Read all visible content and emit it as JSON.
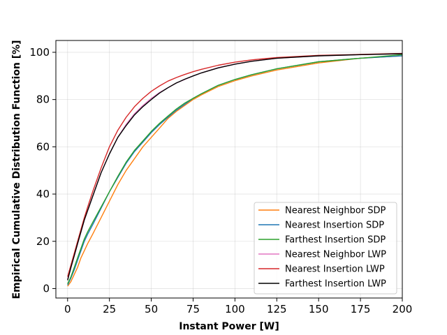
{
  "chart_data": {
    "type": "line",
    "xlabel": "Instant Power [W]",
    "ylabel": "Empirical Cumulative Distribution Function [%]",
    "xlim": [
      -7,
      200
    ],
    "ylim": [
      -4,
      105
    ],
    "xticks": [
      0,
      25,
      50,
      75,
      100,
      125,
      150,
      175,
      200
    ],
    "yticks": [
      0,
      20,
      40,
      60,
      80,
      100
    ],
    "grid": true,
    "legend_position": "lower-right",
    "series": [
      {
        "name": "Nearest Neighbor SDP",
        "color": "#ff7f0e",
        "x": [
          0,
          2,
          4,
          6,
          8,
          10,
          12,
          15,
          20,
          25,
          30,
          35,
          40,
          45,
          50,
          55,
          60,
          65,
          70,
          75,
          80,
          90,
          100,
          110,
          125,
          150,
          175,
          200
        ],
        "y": [
          1,
          3,
          6,
          9,
          13,
          16,
          19,
          23,
          30,
          37,
          44,
          50,
          55,
          60,
          64,
          68,
          72,
          75,
          77.5,
          80,
          82,
          85.5,
          88,
          90,
          92.5,
          95.5,
          97.5,
          98.5
        ]
      },
      {
        "name": "Nearest Insertion SDP",
        "color": "#1f77b4",
        "x": [
          0,
          2,
          4,
          6,
          8,
          10,
          12,
          15,
          20,
          25,
          30,
          35,
          40,
          45,
          50,
          55,
          60,
          65,
          70,
          75,
          80,
          90,
          100,
          110,
          125,
          150,
          175,
          200
        ],
        "y": [
          1.5,
          4.5,
          8,
          12,
          16,
          20,
          23,
          27,
          34,
          41,
          47,
          53,
          58,
          62,
          66,
          69.5,
          72.5,
          75.5,
          78,
          80.5,
          82.5,
          86,
          88.5,
          90.5,
          93,
          96,
          97.5,
          98.5
        ]
      },
      {
        "name": "Farthest Insertion SDP",
        "color": "#2ca02c",
        "x": [
          0,
          2,
          4,
          6,
          8,
          10,
          12,
          15,
          20,
          25,
          30,
          35,
          40,
          45,
          50,
          55,
          60,
          65,
          70,
          75,
          80,
          90,
          100,
          110,
          125,
          150,
          175,
          200
        ],
        "y": [
          2,
          5,
          9,
          13,
          17,
          21,
          24,
          28,
          34.5,
          41,
          47.5,
          53.5,
          58.5,
          62.5,
          66.5,
          70,
          73,
          76,
          78.5,
          80.5,
          82.5,
          86,
          88.5,
          90.5,
          93,
          96,
          97.5,
          99
        ]
      },
      {
        "name": "Nearest Neighbor LWP",
        "color": "#e377c2",
        "x": [
          0,
          2,
          4,
          6,
          8,
          10,
          12,
          15,
          20,
          25,
          30,
          35,
          40,
          45,
          50,
          55,
          60,
          65,
          70,
          75,
          80,
          90,
          100,
          110,
          125,
          150,
          175,
          200
        ],
        "y": [
          4,
          9,
          14,
          19,
          24,
          29,
          33,
          39,
          49,
          57,
          64,
          69.5,
          74,
          77.5,
          80.5,
          83,
          85,
          87,
          88.5,
          90,
          91.3,
          93.5,
          95,
          96.2,
          97.5,
          98.5,
          99,
          99.4
        ]
      },
      {
        "name": "Nearest Insertion LWP",
        "color": "#d62728",
        "x": [
          0,
          2,
          4,
          6,
          8,
          10,
          12,
          15,
          20,
          25,
          30,
          35,
          40,
          45,
          50,
          55,
          60,
          65,
          70,
          75,
          80,
          90,
          100,
          110,
          125,
          150,
          175,
          200
        ],
        "y": [
          5,
          10,
          15,
          20,
          25,
          30,
          34.5,
          41,
          51,
          60,
          67,
          72.5,
          77,
          80.5,
          83.5,
          85.8,
          87.8,
          89.3,
          90.6,
          91.8,
          92.8,
          94.5,
          95.8,
          96.8,
          97.8,
          98.7,
          99.1,
          99.5
        ]
      },
      {
        "name": "Farthest Insertion LWP",
        "color": "#000000",
        "x": [
          0,
          2,
          4,
          6,
          8,
          10,
          12,
          15,
          20,
          25,
          30,
          35,
          40,
          45,
          50,
          55,
          60,
          65,
          70,
          75,
          80,
          90,
          100,
          110,
          125,
          150,
          175,
          200
        ],
        "y": [
          3.5,
          9,
          14,
          19,
          24,
          29,
          33,
          39,
          49,
          57,
          64,
          69,
          73.5,
          77,
          80,
          82.8,
          85,
          87,
          88.6,
          90,
          91.3,
          93.4,
          95,
          96.2,
          97.5,
          98.5,
          99,
          99.4
        ]
      }
    ]
  }
}
